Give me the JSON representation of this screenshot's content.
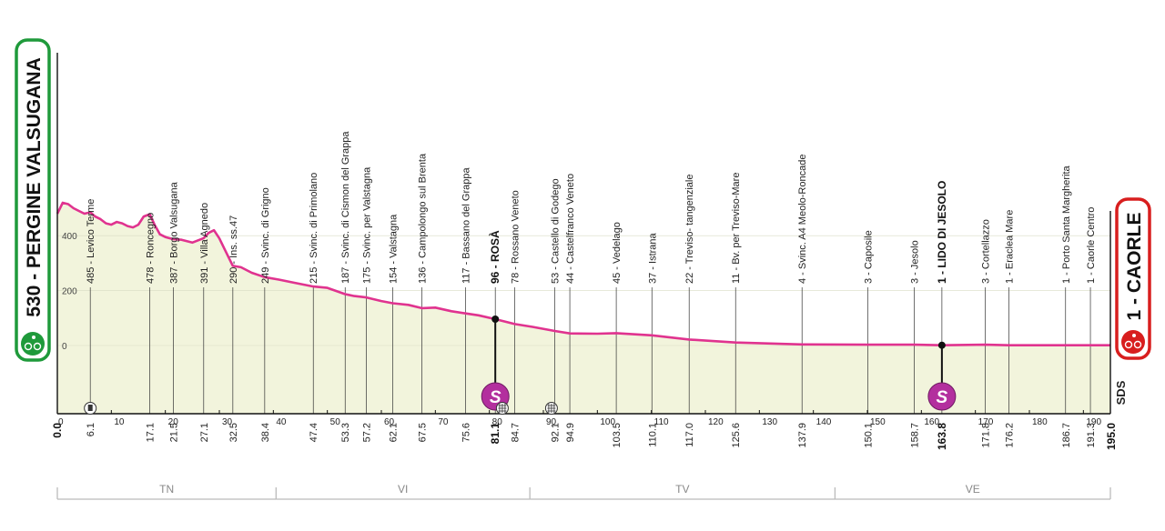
{
  "chart_data": {
    "type": "area",
    "start": {
      "label": "530 - PERGINE VALSUGANA",
      "km": "0.0"
    },
    "finish": {
      "label": "1 - CAORLE",
      "km": "195.0"
    },
    "xlim": [
      0,
      195
    ],
    "ylim": [
      -220,
      700
    ],
    "x_ticks": [
      "0",
      "10",
      "20",
      "30",
      "40",
      "50",
      "60",
      "70",
      "80",
      "90",
      "100",
      "110",
      "120",
      "130",
      "140",
      "150",
      "160",
      "170",
      "180",
      "190"
    ],
    "y_ticks": [
      "0",
      "200",
      "400"
    ],
    "profile": {
      "x": [
        0,
        1,
        2,
        3,
        4,
        5,
        6.1,
        7,
        8,
        9,
        10,
        11,
        12,
        13,
        14,
        15,
        16,
        17.1,
        18,
        19,
        20,
        21.5,
        23,
        25,
        27.1,
        28,
        29,
        30,
        31,
        32.5,
        34,
        36,
        38.4,
        41,
        44,
        47.4,
        50,
        53.3,
        55,
        57.2,
        60,
        62.1,
        65,
        67.5,
        70,
        73,
        75.6,
        78,
        81.1,
        84.7,
        88,
        92.1,
        94.9,
        100,
        103.5,
        110.1,
        117.0,
        125.6,
        137.9,
        150.1,
        158.7,
        163.8,
        171.8,
        176.2,
        186.7,
        191.3,
        195.0
      ],
      "y": [
        480,
        520,
        515,
        500,
        490,
        480,
        485,
        470,
        460,
        445,
        440,
        450,
        445,
        435,
        430,
        440,
        470,
        478,
        440,
        405,
        395,
        387,
        385,
        375,
        391,
        410,
        420,
        390,
        350,
        290,
        285,
        265,
        249,
        240,
        228,
        215,
        210,
        187,
        180,
        175,
        162,
        154,
        148,
        136,
        138,
        125,
        117,
        110,
        96,
        78,
        68,
        53,
        44,
        43,
        45,
        37,
        22,
        11,
        4,
        3,
        3,
        1,
        3,
        1,
        1,
        1,
        1
      ]
    },
    "waypoints": [
      {
        "x": 6.1,
        "km": "6.1",
        "label": "485 - Levico Terme",
        "bold": false,
        "icon": ""
      },
      {
        "x": 17.1,
        "km": "17.1",
        "label": "478 - Roncegno",
        "bold": false,
        "icon": ""
      },
      {
        "x": 21.5,
        "km": "21.5",
        "label": "387 - Borgo Valsugana",
        "bold": false,
        "icon": ""
      },
      {
        "x": 27.1,
        "km": "27.1",
        "label": "391 - Villa Agnedo",
        "bold": false,
        "icon": ""
      },
      {
        "x": 32.5,
        "km": "32.5",
        "label": "290 - Ins. ss.47",
        "bold": false,
        "icon": ""
      },
      {
        "x": 38.4,
        "km": "38.4",
        "label": "249 - Svinc. di Grigno",
        "bold": false,
        "icon": ""
      },
      {
        "x": 47.4,
        "km": "47.4",
        "label": "215 - Svinc. di Primolano",
        "bold": false,
        "icon": ""
      },
      {
        "x": 53.3,
        "km": "53.3",
        "label": "187 - Svinc. di Cismon del Grappa",
        "bold": false,
        "icon": ""
      },
      {
        "x": 57.2,
        "km": "57.2",
        "label": "175 - Svinc. per Valstagna",
        "bold": false,
        "icon": ""
      },
      {
        "x": 62.1,
        "km": "62.1",
        "label": "154 - Valstagna",
        "bold": false,
        "icon": ""
      },
      {
        "x": 67.5,
        "km": "67.5",
        "label": "136 - Campolongo sul Brenta",
        "bold": false,
        "icon": ""
      },
      {
        "x": 75.6,
        "km": "75.6",
        "label": "117 - Bassano del Grappa",
        "bold": false,
        "icon": ""
      },
      {
        "x": 81.1,
        "km": "81.1",
        "label": "96 - ROSÀ",
        "bold": true,
        "icon": "sprint"
      },
      {
        "x": 84.7,
        "km": "84.7",
        "label": "78 - Rossano Veneto",
        "bold": false,
        "icon": ""
      },
      {
        "x": 92.1,
        "km": "92.1",
        "label": "53 - Castello di Godego",
        "bold": false,
        "icon": ""
      },
      {
        "x": 94.9,
        "km": "94.9",
        "label": "44 - Castelfranco Veneto",
        "bold": false,
        "icon": ""
      },
      {
        "x": 103.5,
        "km": "103.5",
        "label": "45 - Vedelago",
        "bold": false,
        "icon": ""
      },
      {
        "x": 110.1,
        "km": "110.1",
        "label": "37 - Istrana",
        "bold": false,
        "icon": ""
      },
      {
        "x": 117.0,
        "km": "117.0",
        "label": "22 - Treviso- tangenziale",
        "bold": false,
        "icon": ""
      },
      {
        "x": 125.6,
        "km": "125.6",
        "label": "11 - Bv. per Treviso-Mare",
        "bold": false,
        "icon": ""
      },
      {
        "x": 137.9,
        "km": "137.9",
        "label": "4 - Svinc. A4  Meolo-Roncade",
        "bold": false,
        "icon": ""
      },
      {
        "x": 150.1,
        "km": "150.1",
        "label": "3 - Caposile",
        "bold": false,
        "icon": ""
      },
      {
        "x": 158.7,
        "km": "158.7",
        "label": "3 - Jesolo",
        "bold": false,
        "icon": ""
      },
      {
        "x": 163.8,
        "km": "163.8",
        "label": "1 - LIDO DI JESOLO",
        "bold": true,
        "icon": "sprint"
      },
      {
        "x": 171.8,
        "km": "171.8",
        "label": "3 - Cortellazzo",
        "bold": false,
        "icon": ""
      },
      {
        "x": 176.2,
        "km": "176.2",
        "label": "1 - Eraclea Mare",
        "bold": false,
        "icon": ""
      },
      {
        "x": 186.7,
        "km": "186.7",
        "label": "1 - Porto Santa Margherita",
        "bold": false,
        "icon": ""
      },
      {
        "x": 191.3,
        "km": "191.3",
        "label": "1 - Caorle Centro",
        "bold": false,
        "icon": ""
      }
    ],
    "small_icons": [
      {
        "x": 6.1,
        "type": "circle-icon"
      },
      {
        "x": 82.4,
        "type": "grid-icon"
      },
      {
        "x": 91.5,
        "type": "grid-icon"
      }
    ],
    "sprint_mark": "S",
    "brand_mark": "SDS",
    "regions": [
      {
        "label": "TN",
        "from": 0,
        "to": 40.5
      },
      {
        "label": "VI",
        "from": 40.5,
        "to": 87.5
      },
      {
        "label": "TV",
        "from": 87.5,
        "to": 144
      },
      {
        "label": "VE",
        "from": 144,
        "to": 195
      }
    ],
    "colors": {
      "profile_line": "#e0338f",
      "area_fill": "#f2f4dc",
      "sprint": "#b32f9e",
      "start_border": "#1f9a3b",
      "finish_border": "#d81e1e",
      "region_rule": "#bbbbbb"
    }
  }
}
